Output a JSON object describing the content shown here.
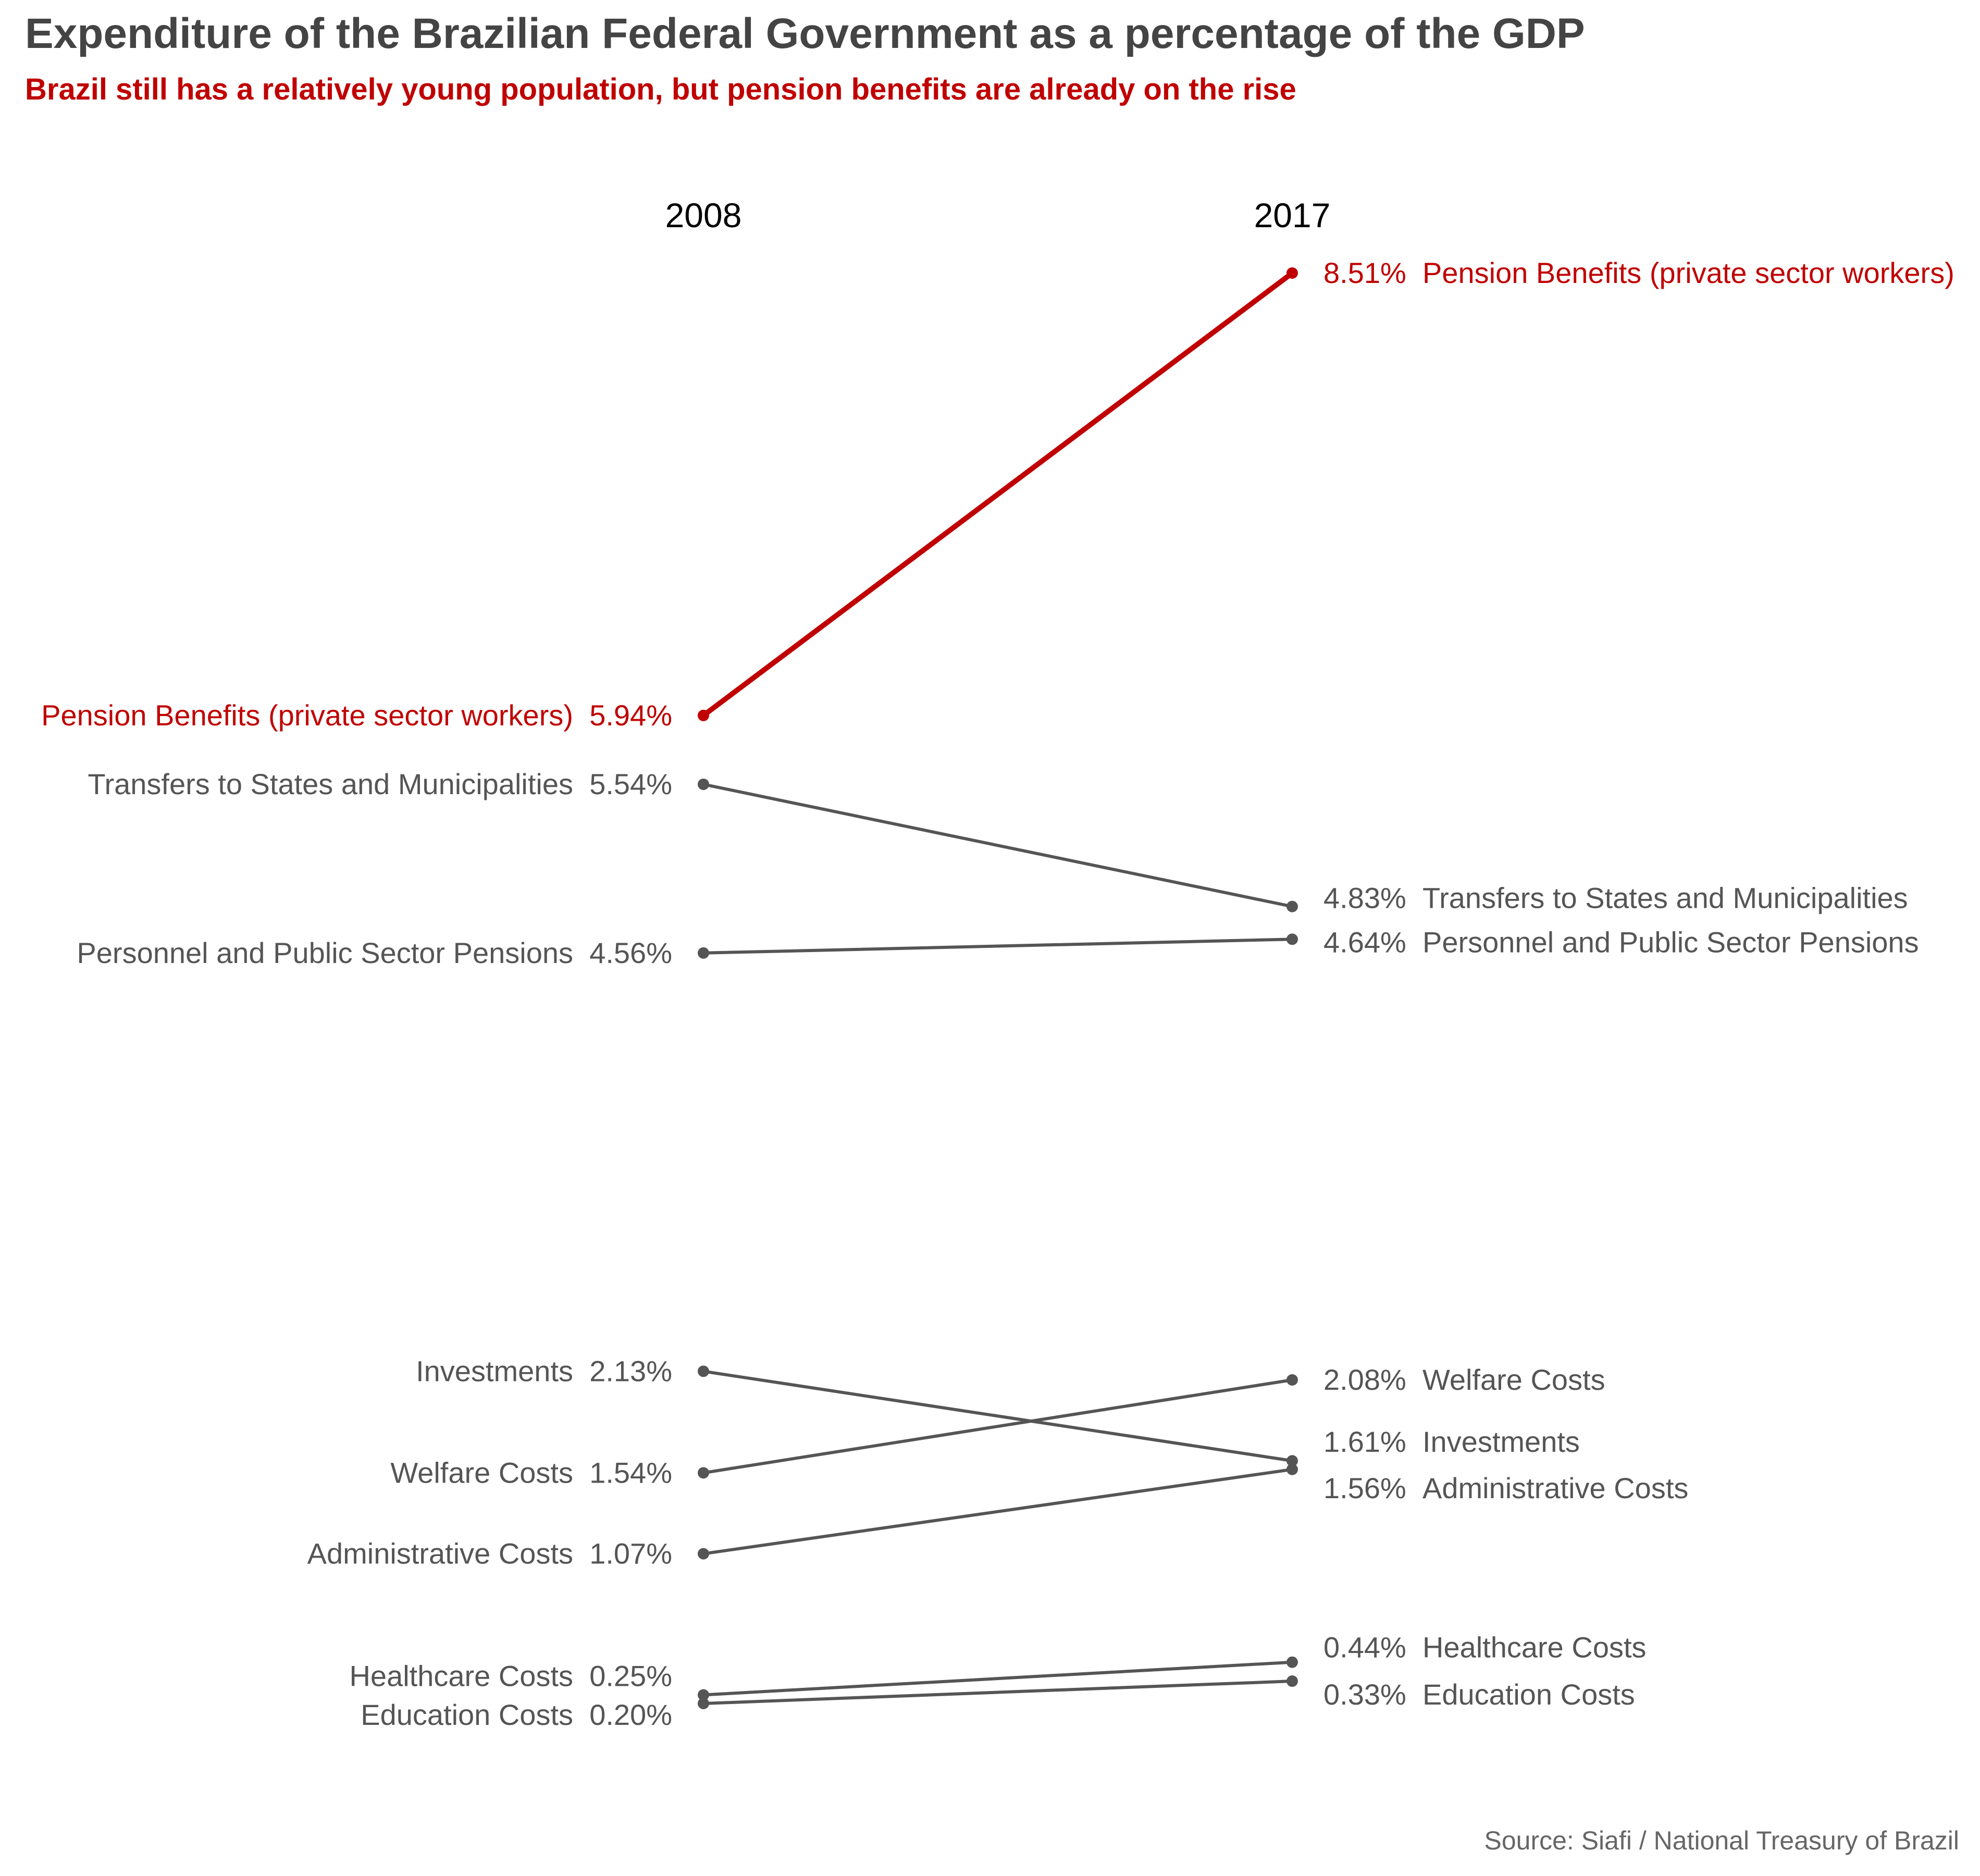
{
  "title": "Expenditure of the Brazilian Federal Government as a percentage of the GDP",
  "subtitle": "Brazil still has a relatively young population, but pension benefits are already on the rise",
  "source": "Source: Siafi / National Treasury of Brazil",
  "colors": {
    "highlight": "#c00000",
    "default": "#555555",
    "title": "#444444"
  },
  "chart_data": {
    "type": "line",
    "x": [
      "2008",
      "2017"
    ],
    "unit": "%",
    "series": [
      {
        "name": "Pension Benefits (private sector workers)",
        "values": [
          5.94,
          8.51
        ],
        "labels": [
          "5.94%",
          "8.51%"
        ],
        "highlight": true
      },
      {
        "name": "Transfers to States and Municipalities",
        "values": [
          5.54,
          4.83
        ],
        "labels": [
          "5.54%",
          "4.83%"
        ]
      },
      {
        "name": "Personnel and Public Sector Pensions",
        "values": [
          4.56,
          4.64
        ],
        "labels": [
          "4.56%",
          "4.64%"
        ]
      },
      {
        "name": "Investments",
        "values": [
          2.13,
          1.61
        ],
        "labels": [
          "2.13%",
          "1.61%"
        ]
      },
      {
        "name": "Welfare Costs",
        "values": [
          1.54,
          2.08
        ],
        "labels": [
          "1.54%",
          "2.08%"
        ]
      },
      {
        "name": "Administrative Costs",
        "values": [
          1.07,
          1.56
        ],
        "labels": [
          "1.07%",
          "1.56%"
        ]
      },
      {
        "name": "Healthcare Costs",
        "values": [
          0.25,
          0.44
        ],
        "labels": [
          "0.25%",
          "0.44%"
        ]
      },
      {
        "name": "Education Costs",
        "values": [
          0.2,
          0.33
        ],
        "labels": [
          "0.20%",
          "0.33%"
        ]
      }
    ]
  }
}
